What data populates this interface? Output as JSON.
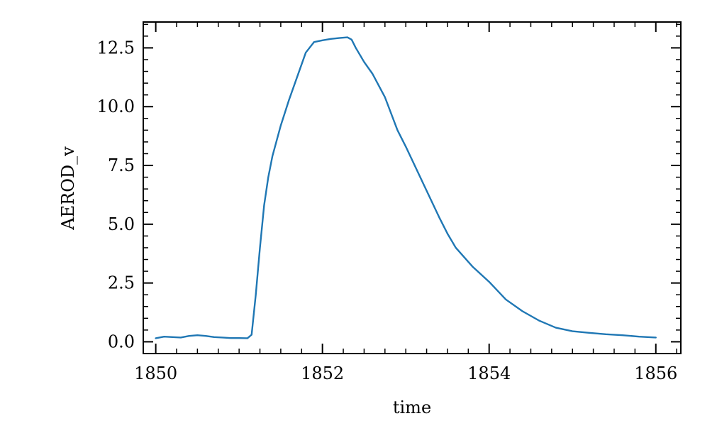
{
  "chart_data": {
    "type": "line",
    "title": "",
    "xlabel": "time",
    "ylabel": "AEROD_v",
    "xlim": [
      1849.85,
      1856.3
    ],
    "ylim": [
      -0.5,
      13.6
    ],
    "xticks": [
      1850,
      1852,
      1854,
      1856
    ],
    "xtick_labels": [
      "1850",
      "1852",
      "1854",
      "1856"
    ],
    "yticks": [
      0.0,
      2.5,
      5.0,
      7.5,
      10.0,
      12.5
    ],
    "ytick_labels": [
      "0.0",
      "2.5",
      "5.0",
      "7.5",
      "10.0",
      "12.5"
    ],
    "grid": false,
    "series": [
      {
        "color": "#1f77b4",
        "x": [
          1850.0,
          1850.1,
          1850.2,
          1850.3,
          1850.4,
          1850.5,
          1850.6,
          1850.7,
          1850.8,
          1850.9,
          1851.0,
          1851.1,
          1851.15,
          1851.2,
          1851.25,
          1851.3,
          1851.35,
          1851.4,
          1851.5,
          1851.6,
          1851.7,
          1851.8,
          1851.9,
          1852.0,
          1852.1,
          1852.2,
          1852.3,
          1852.35,
          1852.4,
          1852.5,
          1852.6,
          1852.75,
          1852.9,
          1853.0,
          1853.2,
          1853.4,
          1853.5,
          1853.6,
          1853.8,
          1854.0,
          1854.2,
          1854.4,
          1854.6,
          1854.8,
          1855.0,
          1855.2,
          1855.4,
          1855.6,
          1855.8,
          1856.0
        ],
        "y": [
          0.15,
          0.22,
          0.2,
          0.18,
          0.25,
          0.28,
          0.25,
          0.2,
          0.18,
          0.16,
          0.16,
          0.15,
          0.3,
          2.0,
          4.0,
          5.8,
          7.0,
          7.9,
          9.2,
          10.3,
          11.3,
          12.3,
          12.75,
          12.82,
          12.88,
          12.92,
          12.95,
          12.85,
          12.5,
          11.9,
          11.4,
          10.4,
          9.0,
          8.3,
          6.8,
          5.3,
          4.6,
          4.0,
          3.2,
          2.55,
          1.8,
          1.3,
          0.9,
          0.6,
          0.45,
          0.38,
          0.32,
          0.28,
          0.22,
          0.18
        ]
      }
    ]
  }
}
